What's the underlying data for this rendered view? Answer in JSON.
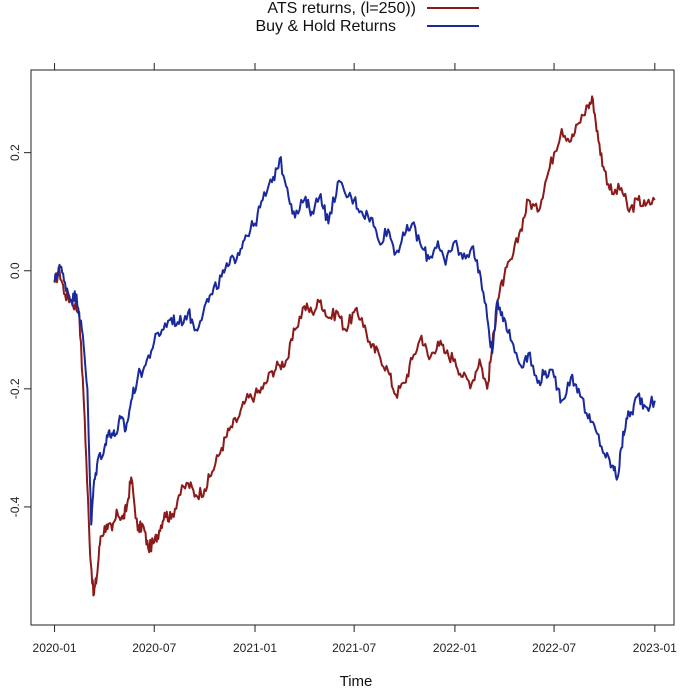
{
  "chart_data": {
    "type": "line",
    "xlabel": "Time",
    "ylabel": "",
    "title": "",
    "x_ticks": [
      "2020-01",
      "2020-07",
      "2021-01",
      "2021-07",
      "2022-01",
      "2022-07",
      "2023-01"
    ],
    "y_ticks": [
      "-0.4",
      "-0.2",
      "0.0",
      "0.2"
    ],
    "ylim": [
      -0.6,
      0.34
    ],
    "xlim": [
      "2019-11-19",
      "2023-02-05"
    ],
    "grid": false,
    "legend_position": "top-center",
    "series": [
      {
        "name": "ATS returns, (l=250))",
        "color": "#8b1a1a",
        "points": [
          [
            "2020-01-01",
            -0.02
          ],
          [
            "2020-01-10",
            0.0
          ],
          [
            "2020-01-20",
            -0.04
          ],
          [
            "2020-02-01",
            -0.05
          ],
          [
            "2020-02-15",
            -0.07
          ],
          [
            "2020-02-25",
            -0.25
          ],
          [
            "2020-03-05",
            -0.46
          ],
          [
            "2020-03-12",
            -0.55
          ],
          [
            "2020-03-18",
            -0.52
          ],
          [
            "2020-03-25",
            -0.45
          ],
          [
            "2020-04-05",
            -0.43
          ],
          [
            "2020-04-15",
            -0.44
          ],
          [
            "2020-04-25",
            -0.41
          ],
          [
            "2020-05-05",
            -0.42
          ],
          [
            "2020-05-12",
            -0.4
          ],
          [
            "2020-05-20",
            -0.35
          ],
          [
            "2020-06-01",
            -0.44
          ],
          [
            "2020-06-10",
            -0.43
          ],
          [
            "2020-06-20",
            -0.47
          ],
          [
            "2020-07-01",
            -0.46
          ],
          [
            "2020-07-10",
            -0.44
          ],
          [
            "2020-07-20",
            -0.41
          ],
          [
            "2020-08-01",
            -0.42
          ],
          [
            "2020-08-15",
            -0.38
          ],
          [
            "2020-09-01",
            -0.36
          ],
          [
            "2020-09-15",
            -0.38
          ],
          [
            "2020-10-01",
            -0.37
          ],
          [
            "2020-10-15",
            -0.34
          ],
          [
            "2020-11-01",
            -0.3
          ],
          [
            "2020-11-15",
            -0.27
          ],
          [
            "2020-12-01",
            -0.25
          ],
          [
            "2020-12-15",
            -0.22
          ],
          [
            "2021-01-01",
            -0.21
          ],
          [
            "2021-01-15",
            -0.2
          ],
          [
            "2021-02-01",
            -0.17
          ],
          [
            "2021-02-15",
            -0.16
          ],
          [
            "2021-03-01",
            -0.15
          ],
          [
            "2021-03-15",
            -0.1
          ],
          [
            "2021-04-01",
            -0.06
          ],
          [
            "2021-04-15",
            -0.07
          ],
          [
            "2021-05-01",
            -0.05
          ],
          [
            "2021-05-15",
            -0.08
          ],
          [
            "2021-06-01",
            -0.07
          ],
          [
            "2021-06-15",
            -0.1
          ],
          [
            "2021-07-01",
            -0.07
          ],
          [
            "2021-07-15",
            -0.08
          ],
          [
            "2021-08-01",
            -0.13
          ],
          [
            "2021-08-15",
            -0.14
          ],
          [
            "2021-09-01",
            -0.17
          ],
          [
            "2021-09-15",
            -0.21
          ],
          [
            "2021-10-01",
            -0.19
          ],
          [
            "2021-10-15",
            -0.15
          ],
          [
            "2021-11-01",
            -0.11
          ],
          [
            "2021-11-15",
            -0.15
          ],
          [
            "2021-12-01",
            -0.12
          ],
          [
            "2021-12-15",
            -0.14
          ],
          [
            "2022-01-01",
            -0.15
          ],
          [
            "2022-01-15",
            -0.18
          ],
          [
            "2022-02-01",
            -0.19
          ],
          [
            "2022-02-15",
            -0.15
          ],
          [
            "2022-03-01",
            -0.2
          ],
          [
            "2022-03-10",
            -0.13
          ],
          [
            "2022-03-20",
            -0.05
          ],
          [
            "2022-04-01",
            -0.01
          ],
          [
            "2022-04-15",
            0.02
          ],
          [
            "2022-05-01",
            0.07
          ],
          [
            "2022-05-15",
            0.12
          ],
          [
            "2022-06-01",
            0.1
          ],
          [
            "2022-06-15",
            0.15
          ],
          [
            "2022-07-01",
            0.2
          ],
          [
            "2022-07-15",
            0.24
          ],
          [
            "2022-08-01",
            0.22
          ],
          [
            "2022-08-15",
            0.25
          ],
          [
            "2022-09-01",
            0.28
          ],
          [
            "2022-09-10",
            0.29
          ],
          [
            "2022-09-20",
            0.22
          ],
          [
            "2022-10-01",
            0.17
          ],
          [
            "2022-10-15",
            0.13
          ],
          [
            "2022-11-01",
            0.14
          ],
          [
            "2022-11-15",
            0.1
          ],
          [
            "2022-12-01",
            0.12
          ],
          [
            "2022-12-15",
            0.11
          ],
          [
            "2023-01-01",
            0.12
          ]
        ]
      },
      {
        "name": "Buy & Hold Returns",
        "color": "#1a2a9c",
        "points": [
          [
            "2020-01-01",
            -0.02
          ],
          [
            "2020-01-10",
            0.01
          ],
          [
            "2020-01-20",
            -0.02
          ],
          [
            "2020-02-01",
            -0.05
          ],
          [
            "2020-02-10",
            -0.04
          ],
          [
            "2020-02-20",
            -0.1
          ],
          [
            "2020-03-01",
            -0.2
          ],
          [
            "2020-03-08",
            -0.43
          ],
          [
            "2020-03-12",
            -0.37
          ],
          [
            "2020-03-20",
            -0.32
          ],
          [
            "2020-04-01",
            -0.3
          ],
          [
            "2020-04-10",
            -0.27
          ],
          [
            "2020-04-20",
            -0.28
          ],
          [
            "2020-05-01",
            -0.25
          ],
          [
            "2020-05-10",
            -0.27
          ],
          [
            "2020-05-20",
            -0.22
          ],
          [
            "2020-06-01",
            -0.18
          ],
          [
            "2020-06-15",
            -0.16
          ],
          [
            "2020-07-01",
            -0.12
          ],
          [
            "2020-07-15",
            -0.1
          ],
          [
            "2020-08-01",
            -0.08
          ],
          [
            "2020-08-15",
            -0.09
          ],
          [
            "2020-09-01",
            -0.07
          ],
          [
            "2020-09-15",
            -0.1
          ],
          [
            "2020-10-01",
            -0.06
          ],
          [
            "2020-10-15",
            -0.04
          ],
          [
            "2020-11-01",
            -0.01
          ],
          [
            "2020-11-15",
            0.01
          ],
          [
            "2020-12-01",
            0.03
          ],
          [
            "2020-12-15",
            0.06
          ],
          [
            "2021-01-01",
            0.08
          ],
          [
            "2021-01-15",
            0.12
          ],
          [
            "2021-02-01",
            0.15
          ],
          [
            "2021-02-15",
            0.19
          ],
          [
            "2021-03-01",
            0.14
          ],
          [
            "2021-03-15",
            0.09
          ],
          [
            "2021-04-01",
            0.12
          ],
          [
            "2021-04-15",
            0.1
          ],
          [
            "2021-05-01",
            0.13
          ],
          [
            "2021-05-15",
            0.08
          ],
          [
            "2021-06-01",
            0.15
          ],
          [
            "2021-06-15",
            0.13
          ],
          [
            "2021-07-01",
            0.12
          ],
          [
            "2021-07-15",
            0.1
          ],
          [
            "2021-08-01",
            0.09
          ],
          [
            "2021-08-15",
            0.05
          ],
          [
            "2021-09-01",
            0.07
          ],
          [
            "2021-09-15",
            0.03
          ],
          [
            "2021-10-01",
            0.06
          ],
          [
            "2021-10-15",
            0.08
          ],
          [
            "2021-11-01",
            0.04
          ],
          [
            "2021-11-15",
            0.02
          ],
          [
            "2021-12-01",
            0.05
          ],
          [
            "2021-12-15",
            0.01
          ],
          [
            "2022-01-01",
            0.05
          ],
          [
            "2022-01-15",
            0.02
          ],
          [
            "2022-02-01",
            0.04
          ],
          [
            "2022-02-15",
            0.0
          ],
          [
            "2022-03-01",
            -0.08
          ],
          [
            "2022-03-10",
            -0.14
          ],
          [
            "2022-03-20",
            -0.05
          ],
          [
            "2022-04-01",
            -0.08
          ],
          [
            "2022-04-15",
            -0.12
          ],
          [
            "2022-05-01",
            -0.16
          ],
          [
            "2022-05-15",
            -0.14
          ],
          [
            "2022-06-01",
            -0.19
          ],
          [
            "2022-06-15",
            -0.17
          ],
          [
            "2022-07-01",
            -0.18
          ],
          [
            "2022-07-15",
            -0.22
          ],
          [
            "2022-08-01",
            -0.18
          ],
          [
            "2022-08-15",
            -0.2
          ],
          [
            "2022-09-01",
            -0.25
          ],
          [
            "2022-09-15",
            -0.27
          ],
          [
            "2022-10-01",
            -0.31
          ],
          [
            "2022-10-15",
            -0.33
          ],
          [
            "2022-10-25",
            -0.35
          ],
          [
            "2022-11-01",
            -0.3
          ],
          [
            "2022-11-10",
            -0.25
          ],
          [
            "2022-11-20",
            -0.24
          ],
          [
            "2022-12-01",
            -0.21
          ],
          [
            "2022-12-15",
            -0.23
          ],
          [
            "2023-01-01",
            -0.22
          ]
        ]
      }
    ]
  }
}
